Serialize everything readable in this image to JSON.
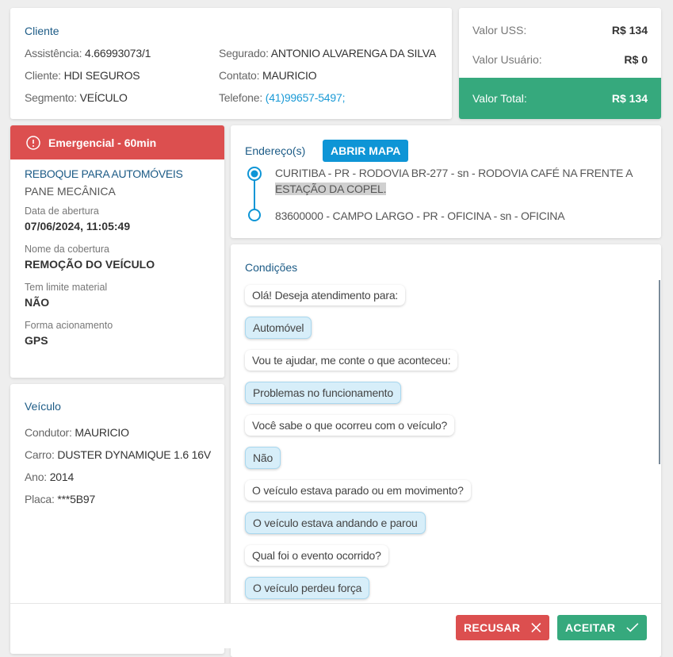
{
  "cliente": {
    "title": "Cliente",
    "assistencia_label": "Assistência:",
    "assistencia": "4.66993073/1",
    "cliente_label": "Cliente:",
    "cliente": "HDI SEGUROS",
    "segmento_label": "Segmento:",
    "segmento": "VEÍCULO",
    "segurado_label": "Segurado:",
    "segurado": "ANTONIO ALVARENGA DA SILVA",
    "contato_label": "Contato:",
    "contato": "MAURICIO",
    "telefone_label": "Telefone:",
    "telefone": "(41)99657-5497;"
  },
  "valores": {
    "uss_label": "Valor USS:",
    "uss": "R$ 134",
    "usuario_label": "Valor Usuário:",
    "usuario": "R$ 0",
    "total_label": "Valor Total:",
    "total": "R$ 134"
  },
  "servico": {
    "badge": "Emergencial - 60min",
    "tipo": "REBOQUE PARA AUTOMÓVEIS",
    "motivo": "PANE MECÂNICA",
    "data_label": "Data de abertura",
    "data": "07/06/2024, 11:05:49",
    "cobertura_label": "Nome da cobertura",
    "cobertura": "REMOÇÃO DO VEÍCULO",
    "limite_label": "Tem limite material",
    "limite": "NÃO",
    "forma_label": "Forma acionamento",
    "forma": "GPS"
  },
  "veiculo": {
    "title": "Veículo",
    "condutor_label": "Condutor:",
    "condutor": "MAURICIO",
    "carro_label": "Carro:",
    "carro": "DUSTER DYNAMIQUE 1.6 16V",
    "ano_label": "Ano:",
    "ano": "2014",
    "placa_label": "Placa:",
    "placa": "***5B97"
  },
  "endereco": {
    "title": "Endereço(s)",
    "map_button": "ABRIR MAPA",
    "origem_1": "CURITIBA - PR - RODOVIA BR-277 - sn - RODOVIA CAFÉ NA FRENTE A",
    "origem_2": "ESTAÇÃO DA COPEL.",
    "destino": "83600000 - CAMPO LARGO - PR - OFICINA - sn - OFICINA"
  },
  "condicoes": {
    "title": "Condições",
    "messages": [
      {
        "text": "Olá! Deseja atendimento para:",
        "type": "question"
      },
      {
        "text": "Automóvel",
        "type": "answer"
      },
      {
        "text": "Vou te ajudar, me conte o que aconteceu:",
        "type": "question"
      },
      {
        "text": "Problemas no funcionamento",
        "type": "answer"
      },
      {
        "text": "Você sabe o que ocorreu com o veículo?",
        "type": "question"
      },
      {
        "text": "Não",
        "type": "answer"
      },
      {
        "text": "O veículo estava parado ou em movimento?",
        "type": "question"
      },
      {
        "text": "O veículo estava andando e parou",
        "type": "answer"
      },
      {
        "text": "Qual foi o evento ocorrido?",
        "type": "question"
      },
      {
        "text": "O veículo perdeu força",
        "type": "answer"
      }
    ]
  },
  "actions": {
    "recusar": "RECUSAR",
    "aceitar": "ACEITAR"
  },
  "colors": {
    "accent": "#1c5b86",
    "green": "#36a97d",
    "red": "#dc4f4f",
    "blue": "#0e95d6"
  }
}
